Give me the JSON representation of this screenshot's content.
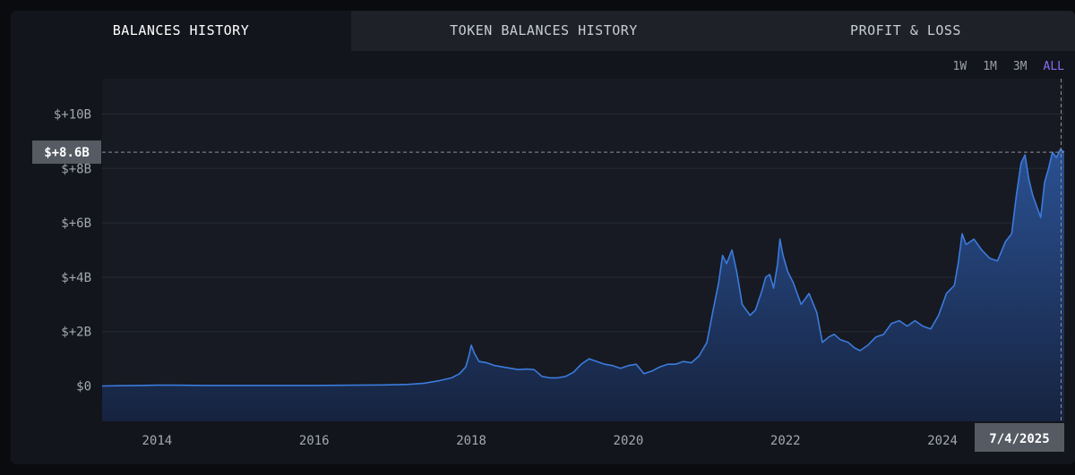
{
  "tabs": [
    {
      "label": "BALANCES HISTORY",
      "active": true
    },
    {
      "label": "TOKEN BALANCES HISTORY",
      "active": false
    },
    {
      "label": "PROFIT & LOSS",
      "active": false
    }
  ],
  "ranges": [
    {
      "label": "1W",
      "active": false
    },
    {
      "label": "1M",
      "active": false
    },
    {
      "label": "3M",
      "active": false
    },
    {
      "label": "ALL",
      "active": true
    }
  ],
  "colors": {
    "line": "#3b7bdc",
    "area_top": "#2b5398",
    "area_bottom": "#16233f",
    "active_range": "#8b6cf6",
    "grid": "#262a33",
    "tag_bg": "#555a63"
  },
  "chart_data": {
    "type": "area",
    "title": "",
    "xlabel": "",
    "ylabel": "",
    "y_ticks": [
      {
        "value": 0,
        "label": "$0"
      },
      {
        "value": 2,
        "label": "$+2B"
      },
      {
        "value": 4,
        "label": "$+4B"
      },
      {
        "value": 6,
        "label": "$+6B"
      },
      {
        "value": 8,
        "label": "$+8B"
      },
      {
        "value": 10,
        "label": "$+10B"
      }
    ],
    "x_ticks": [
      {
        "value": 2014,
        "label": "2014"
      },
      {
        "value": 2016,
        "label": "2016"
      },
      {
        "value": 2018,
        "label": "2018"
      },
      {
        "value": 2020,
        "label": "2020"
      },
      {
        "value": 2022,
        "label": "2022"
      },
      {
        "value": 2024,
        "label": "2024"
      }
    ],
    "xlim": [
      2013.3,
      2025.55
    ],
    "ylim": [
      -1.3,
      11.3
    ],
    "grid": true,
    "series": [
      {
        "points": [
          [
            2013.3,
            0.0
          ],
          [
            2013.5,
            0.01
          ],
          [
            2013.8,
            0.02
          ],
          [
            2014.0,
            0.03
          ],
          [
            2014.2,
            0.03
          ],
          [
            2014.6,
            0.02
          ],
          [
            2015.0,
            0.02
          ],
          [
            2015.5,
            0.02
          ],
          [
            2016.0,
            0.02
          ],
          [
            2016.5,
            0.03
          ],
          [
            2016.9,
            0.04
          ],
          [
            2017.2,
            0.06
          ],
          [
            2017.4,
            0.1
          ],
          [
            2017.6,
            0.2
          ],
          [
            2017.75,
            0.3
          ],
          [
            2017.85,
            0.45
          ],
          [
            2017.93,
            0.7
          ],
          [
            2017.97,
            1.1
          ],
          [
            2018.0,
            1.5
          ],
          [
            2018.04,
            1.2
          ],
          [
            2018.1,
            0.9
          ],
          [
            2018.2,
            0.85
          ],
          [
            2018.3,
            0.75
          ],
          [
            2018.4,
            0.7
          ],
          [
            2018.5,
            0.65
          ],
          [
            2018.6,
            0.6
          ],
          [
            2018.7,
            0.62
          ],
          [
            2018.8,
            0.6
          ],
          [
            2018.9,
            0.35
          ],
          [
            2019.0,
            0.3
          ],
          [
            2019.1,
            0.3
          ],
          [
            2019.2,
            0.35
          ],
          [
            2019.3,
            0.5
          ],
          [
            2019.4,
            0.8
          ],
          [
            2019.5,
            1.0
          ],
          [
            2019.6,
            0.9
          ],
          [
            2019.7,
            0.8
          ],
          [
            2019.8,
            0.75
          ],
          [
            2019.9,
            0.65
          ],
          [
            2020.0,
            0.75
          ],
          [
            2020.1,
            0.8
          ],
          [
            2020.2,
            0.45
          ],
          [
            2020.3,
            0.55
          ],
          [
            2020.4,
            0.7
          ],
          [
            2020.5,
            0.8
          ],
          [
            2020.6,
            0.8
          ],
          [
            2020.7,
            0.9
          ],
          [
            2020.8,
            0.85
          ],
          [
            2020.9,
            1.1
          ],
          [
            2021.0,
            1.6
          ],
          [
            2021.08,
            2.8
          ],
          [
            2021.15,
            3.8
          ],
          [
            2021.2,
            4.8
          ],
          [
            2021.25,
            4.5
          ],
          [
            2021.32,
            5.0
          ],
          [
            2021.38,
            4.2
          ],
          [
            2021.45,
            3.0
          ],
          [
            2021.55,
            2.6
          ],
          [
            2021.62,
            2.8
          ],
          [
            2021.7,
            3.5
          ],
          [
            2021.75,
            4.0
          ],
          [
            2021.8,
            4.1
          ],
          [
            2021.85,
            3.6
          ],
          [
            2021.9,
            4.5
          ],
          [
            2021.93,
            5.4
          ],
          [
            2021.97,
            4.8
          ],
          [
            2022.03,
            4.2
          ],
          [
            2022.1,
            3.8
          ],
          [
            2022.2,
            3.0
          ],
          [
            2022.3,
            3.4
          ],
          [
            2022.4,
            2.7
          ],
          [
            2022.47,
            1.6
          ],
          [
            2022.55,
            1.8
          ],
          [
            2022.62,
            1.9
          ],
          [
            2022.7,
            1.7
          ],
          [
            2022.8,
            1.6
          ],
          [
            2022.88,
            1.4
          ],
          [
            2022.95,
            1.3
          ],
          [
            2023.05,
            1.5
          ],
          [
            2023.15,
            1.8
          ],
          [
            2023.25,
            1.9
          ],
          [
            2023.35,
            2.3
          ],
          [
            2023.45,
            2.4
          ],
          [
            2023.55,
            2.2
          ],
          [
            2023.65,
            2.4
          ],
          [
            2023.75,
            2.2
          ],
          [
            2023.85,
            2.1
          ],
          [
            2023.95,
            2.6
          ],
          [
            2024.05,
            3.4
          ],
          [
            2024.15,
            3.7
          ],
          [
            2024.2,
            4.5
          ],
          [
            2024.25,
            5.6
          ],
          [
            2024.3,
            5.2
          ],
          [
            2024.4,
            5.4
          ],
          [
            2024.5,
            5.0
          ],
          [
            2024.6,
            4.7
          ],
          [
            2024.7,
            4.6
          ],
          [
            2024.8,
            5.3
          ],
          [
            2024.88,
            5.6
          ],
          [
            2024.94,
            7.0
          ],
          [
            2025.0,
            8.2
          ],
          [
            2025.05,
            8.5
          ],
          [
            2025.1,
            7.6
          ],
          [
            2025.15,
            7.0
          ],
          [
            2025.2,
            6.6
          ],
          [
            2025.25,
            6.2
          ],
          [
            2025.3,
            7.5
          ],
          [
            2025.35,
            8.0
          ],
          [
            2025.4,
            8.6
          ],
          [
            2025.45,
            8.4
          ],
          [
            2025.5,
            8.7
          ],
          [
            2025.55,
            8.6
          ]
        ]
      }
    ],
    "crosshair": {
      "value": 8.6,
      "value_label": "$+8.6B",
      "x": 2025.51,
      "date_label": "7/4/2025"
    }
  }
}
